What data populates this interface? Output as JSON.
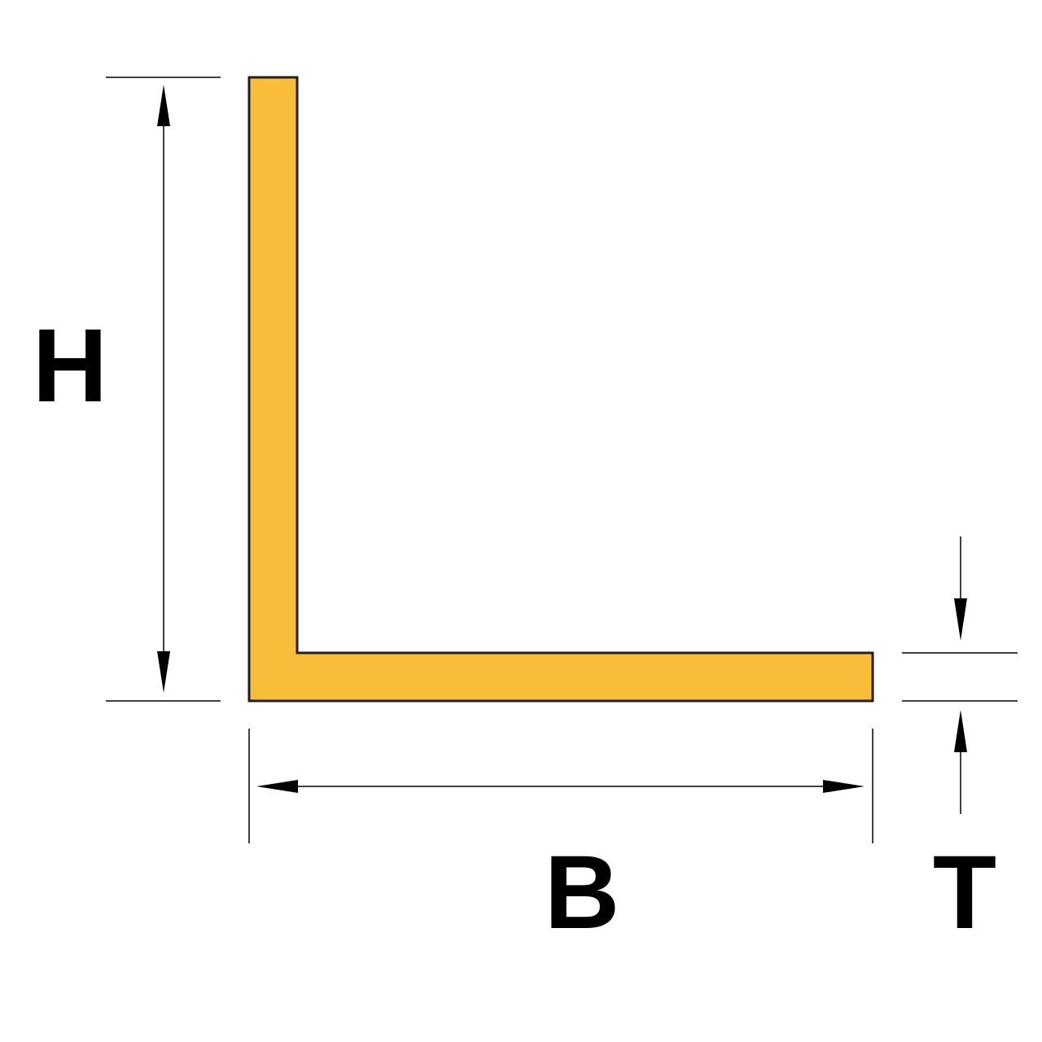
{
  "labels": {
    "height": "H",
    "breadth": "B",
    "thickness": "T"
  },
  "colors": {
    "profile_fill": "#F8BD39",
    "profile_stroke": "#231F20",
    "line": "#000000",
    "background": "#FFFFFF"
  }
}
